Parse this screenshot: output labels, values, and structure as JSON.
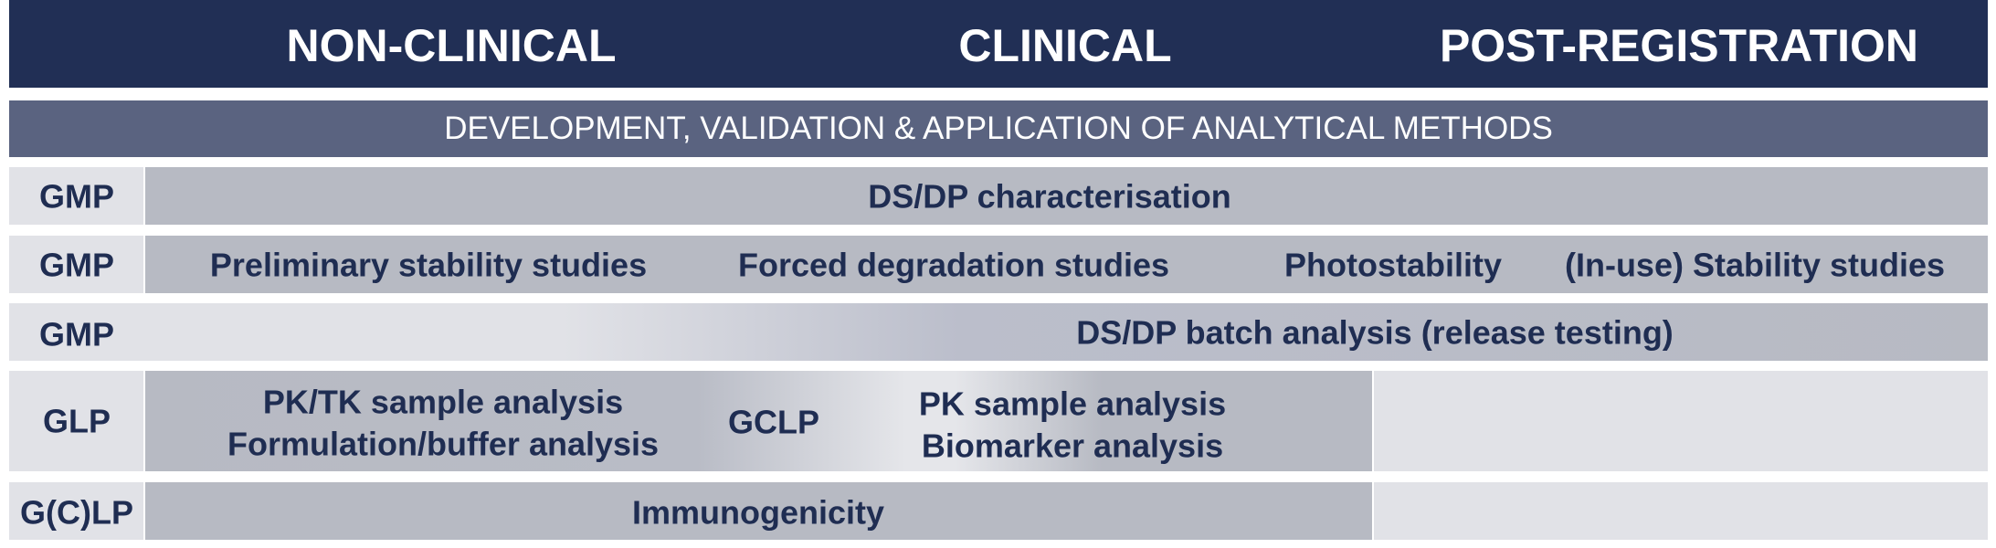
{
  "header": {
    "col1": "NON-CLINICAL",
    "col2": "CLINICAL",
    "col3": "POST-REGISTRATION"
  },
  "subheader": "DEVELOPMENT, VALIDATION & APPLICATION OF ANALYTICAL METHODS",
  "rows": [
    {
      "tag": "GMP",
      "items": [
        "DS/DP characterisation"
      ]
    },
    {
      "tag": "GMP",
      "items": [
        "Preliminary stability studies",
        "Forced degradation studies",
        "Photostability",
        "(In-use) Stability studies"
      ]
    },
    {
      "tag": "GMP",
      "items": [
        "DS/DP batch analysis (release testing)"
      ]
    },
    {
      "tag": "GLP",
      "items": [
        "PK/TK sample analysis",
        "Formulation/buffer analysis"
      ],
      "tag2": "GCLP",
      "items2": [
        "PK sample analysis",
        "Biomarker analysis"
      ]
    },
    {
      "tag": "G(C)LP",
      "items": [
        "Immunogenicity"
      ]
    }
  ],
  "colors": {
    "header_bg": "#212f55",
    "subheader_bg": "#5a6380",
    "cell_dark": "#b7bac3",
    "cell_light": "#e1e2e7",
    "text_dark": "#1f2d52"
  }
}
